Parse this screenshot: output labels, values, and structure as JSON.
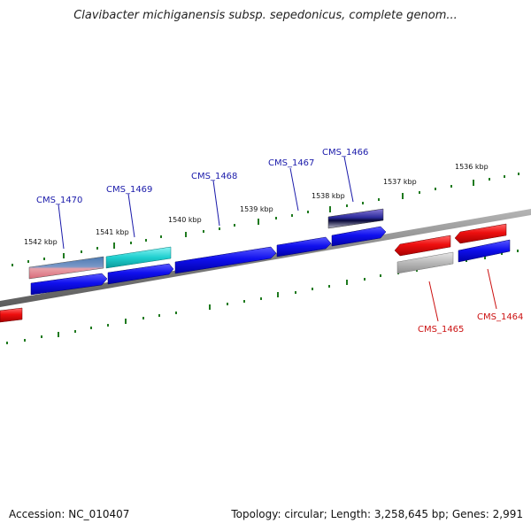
{
  "title": "Clavibacter michiganensis subsp. sepedonicus, complete genom...",
  "footer": {
    "accession": "Accession: NC_010407",
    "summary": "Topology: circular; Length: 3,258,645 bp; Genes: 2,991"
  },
  "colors": {
    "backbone": "#8a8a8a",
    "tick": "#1f7a1f",
    "label_forward": "#1a1aaa",
    "label_reverse": "#cc1111"
  },
  "ticks": [
    {
      "label": "1542 kbp"
    },
    {
      "label": "1541 kbp"
    },
    {
      "label": "1540 kbp"
    },
    {
      "label": "1539 kbp"
    },
    {
      "label": "1538 kbp"
    },
    {
      "label": "1537 kbp"
    },
    {
      "label": "1536 kbp"
    }
  ],
  "genes": [
    {
      "name": "CMS_1470"
    },
    {
      "name": "CMS_1469"
    },
    {
      "name": "CMS_1468"
    },
    {
      "name": "CMS_1467"
    },
    {
      "name": "CMS_1466"
    },
    {
      "name": "CMS_1465"
    },
    {
      "name": "CMS_1464"
    }
  ]
}
